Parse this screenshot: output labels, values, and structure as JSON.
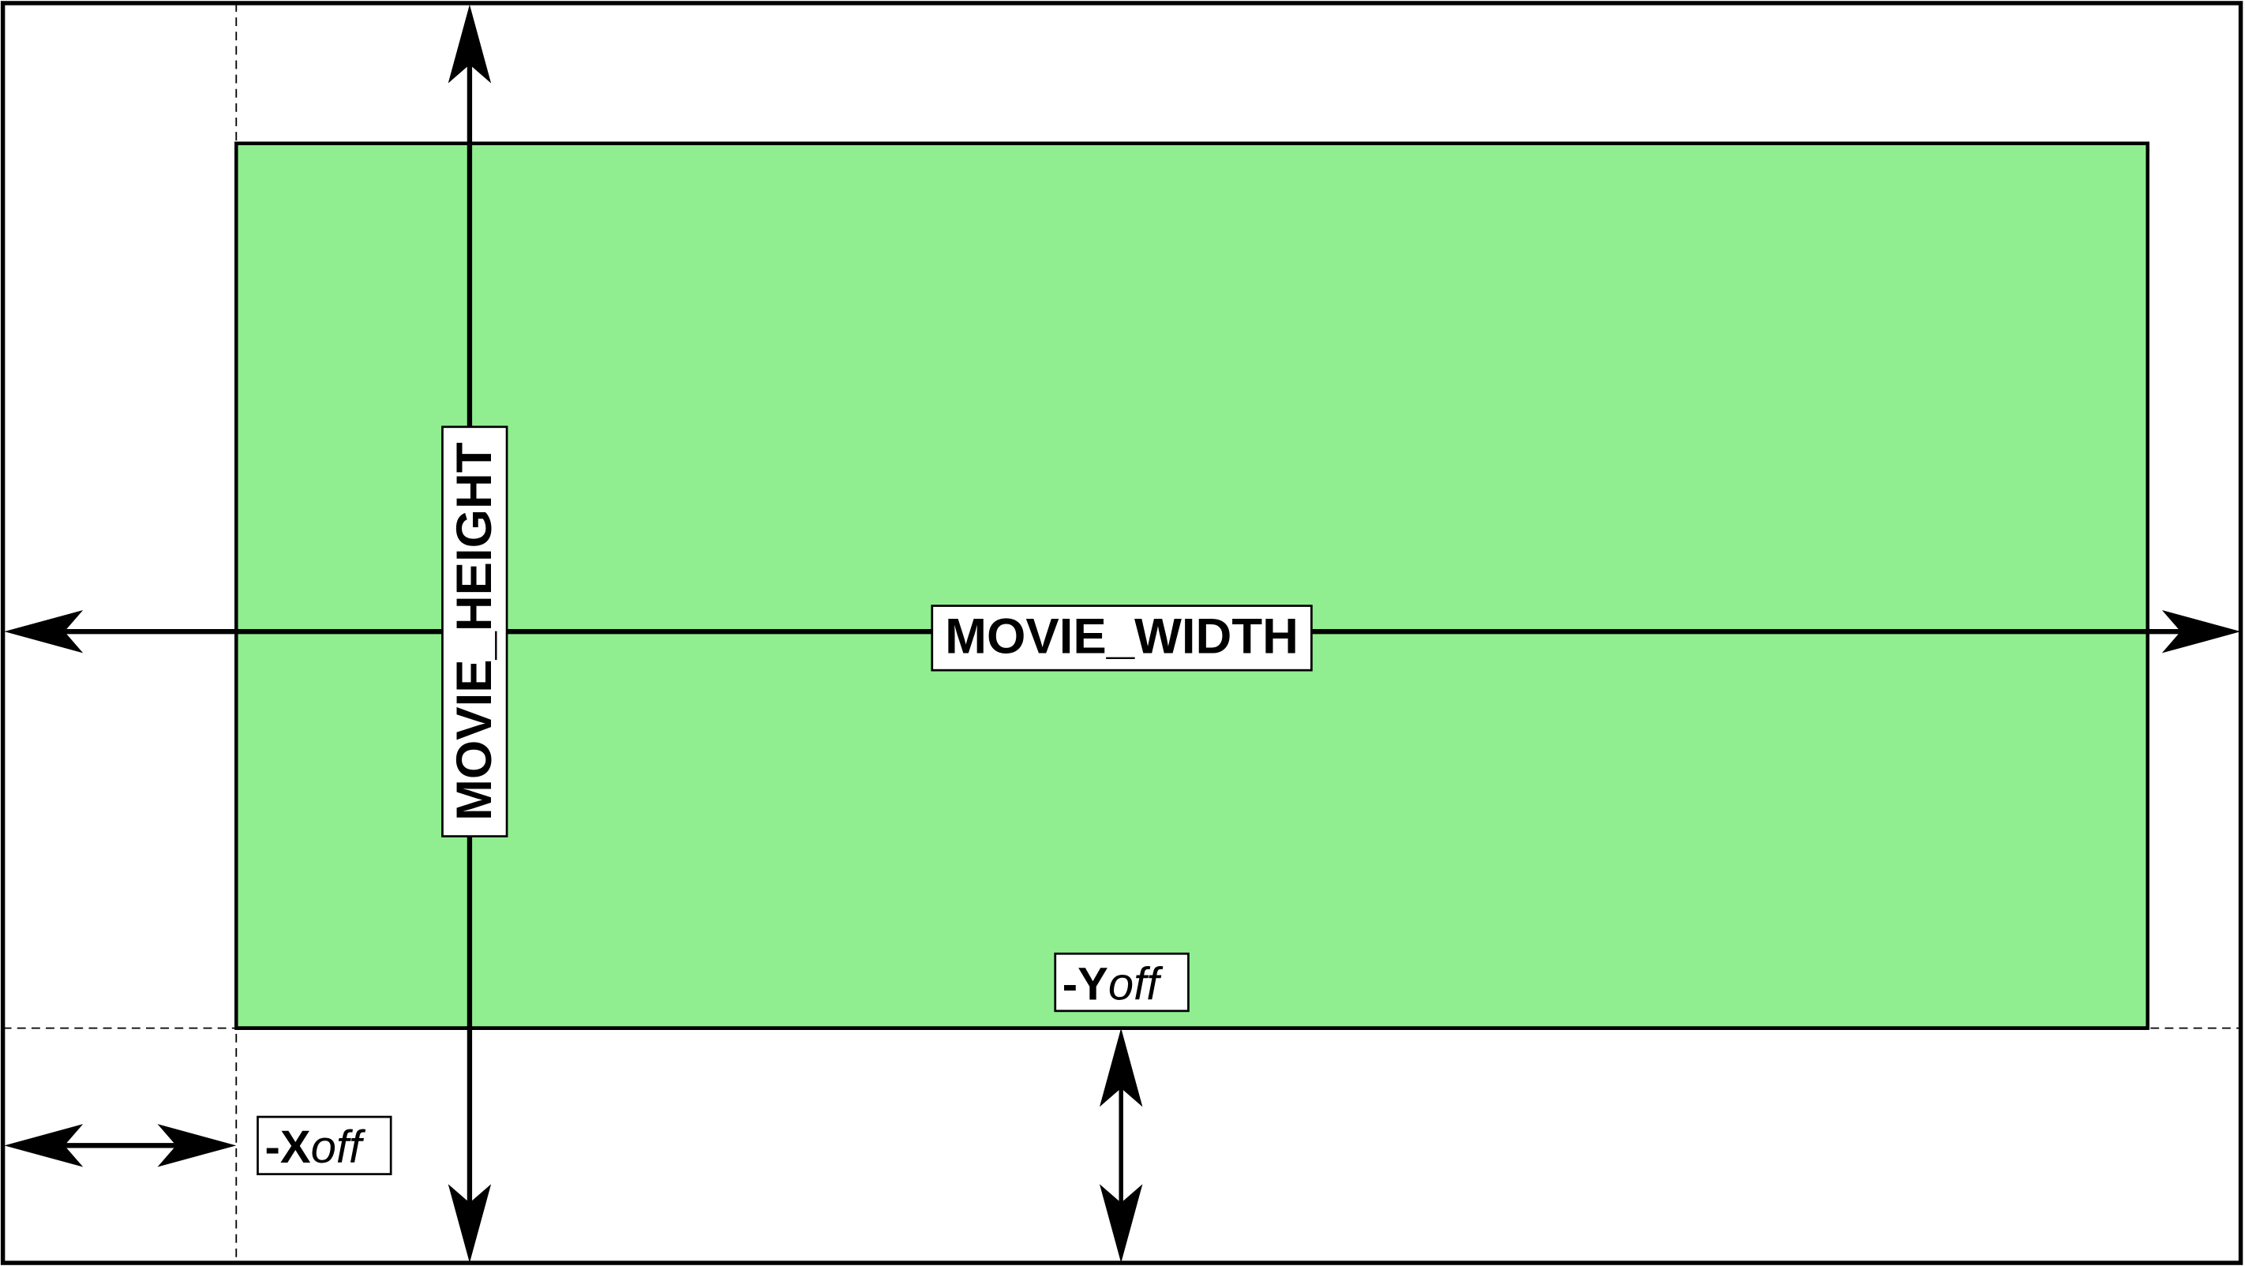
{
  "diagram": {
    "labels": {
      "width": "MOVIE_WIDTH",
      "height": "MOVIE_HEIGHT",
      "yoff_prefix": "-Y",
      "yoff_suffix": "off",
      "xoff_prefix": "-X",
      "xoff_suffix": "off"
    },
    "colors": {
      "movie_fill": "#90ee90",
      "stroke": "#000000",
      "background": "#ffffff"
    }
  }
}
